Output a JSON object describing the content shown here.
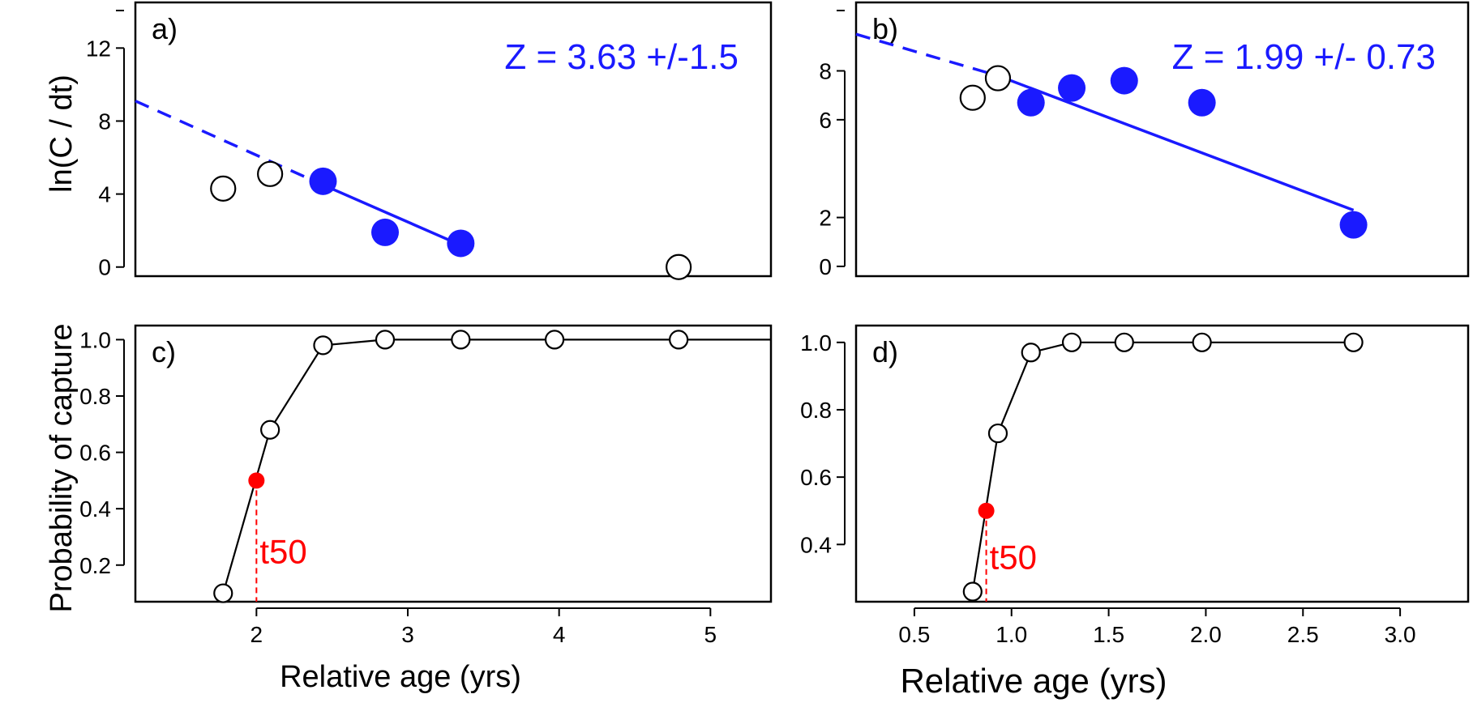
{
  "colors": {
    "fit": "#1a1aff",
    "marker_fill": "#1a1aff",
    "t50": "#ff0000",
    "line": "#000000"
  },
  "labels": {
    "ylabel_top": "ln(C / dt)",
    "ylabel_bottom": "Probability of capture",
    "xlabel": "Relative age (yrs)"
  },
  "chart_data": [
    {
      "panel": "a)",
      "type": "scatter",
      "annotation": "Z = 3.63 +/-1.5",
      "xlim": [
        1.2,
        5.4
      ],
      "ylim": [
        -0.5,
        14.5
      ],
      "yticks": [
        0,
        4,
        8,
        12
      ],
      "open_points": [
        {
          "x": 1.78,
          "y": 4.3
        },
        {
          "x": 2.09,
          "y": 5.1
        },
        {
          "x": 4.79,
          "y": 0.0
        }
      ],
      "filled_points": [
        {
          "x": 2.44,
          "y": 4.7
        },
        {
          "x": 2.85,
          "y": 1.9
        },
        {
          "x": 3.35,
          "y": 1.3
        }
      ],
      "fit_solid": [
        {
          "x": 2.44,
          "y": 4.5
        },
        {
          "x": 3.35,
          "y": 1.2
        }
      ],
      "fit_dashed": [
        {
          "x": 1.2,
          "y": 9.1
        },
        {
          "x": 2.44,
          "y": 4.5
        }
      ]
    },
    {
      "panel": "b)",
      "type": "scatter",
      "annotation": "Z = 1.99 +/- 0.73",
      "xlim": [
        0.2,
        3.35
      ],
      "ylim": [
        -0.4,
        10.8
      ],
      "yticks": [
        0,
        2,
        6,
        8
      ],
      "open_points": [
        {
          "x": 0.8,
          "y": 6.9
        },
        {
          "x": 0.93,
          "y": 7.7
        }
      ],
      "filled_points": [
        {
          "x": 1.1,
          "y": 6.7
        },
        {
          "x": 1.31,
          "y": 7.3
        },
        {
          "x": 1.58,
          "y": 7.6
        },
        {
          "x": 1.98,
          "y": 6.7
        },
        {
          "x": 2.76,
          "y": 1.7
        }
      ],
      "fit_solid": [
        {
          "x": 0.93,
          "y": 7.8
        },
        {
          "x": 2.76,
          "y": 2.3
        }
      ],
      "fit_dashed": [
        {
          "x": 0.2,
          "y": 9.5
        },
        {
          "x": 0.93,
          "y": 7.8
        }
      ]
    },
    {
      "panel": "c)",
      "type": "line",
      "xlim": [
        1.2,
        5.4
      ],
      "ylim": [
        0.07,
        1.05
      ],
      "xticks": [
        2,
        3,
        4,
        5
      ],
      "yticks": [
        0.2,
        0.4,
        0.6,
        0.8,
        1.0
      ],
      "points": [
        {
          "x": 1.78,
          "y": 0.1
        },
        {
          "x": 2.09,
          "y": 0.68
        },
        {
          "x": 2.44,
          "y": 0.98
        },
        {
          "x": 2.85,
          "y": 1.0
        },
        {
          "x": 3.35,
          "y": 1.0
        },
        {
          "x": 3.97,
          "y": 1.0
        },
        {
          "x": 4.79,
          "y": 1.0
        },
        {
          "x": 5.4,
          "y": 1.0
        }
      ],
      "t50": {
        "label": "t50",
        "x": 2.0,
        "y": 0.5
      }
    },
    {
      "panel": "d)",
      "type": "line",
      "xlim": [
        0.2,
        3.35
      ],
      "ylim": [
        0.23,
        1.05
      ],
      "xticks": [
        0.5,
        1.0,
        1.5,
        2.0,
        2.5,
        3.0
      ],
      "yticks": [
        0.4,
        0.6,
        0.8,
        1.0
      ],
      "points": [
        {
          "x": 0.8,
          "y": 0.26
        },
        {
          "x": 0.93,
          "y": 0.73
        },
        {
          "x": 1.1,
          "y": 0.97
        },
        {
          "x": 1.31,
          "y": 1.0
        },
        {
          "x": 1.58,
          "y": 1.0
        },
        {
          "x": 1.98,
          "y": 1.0
        },
        {
          "x": 2.76,
          "y": 1.0
        }
      ],
      "t50": {
        "label": "t50",
        "x": 0.87,
        "y": 0.5
      }
    }
  ]
}
